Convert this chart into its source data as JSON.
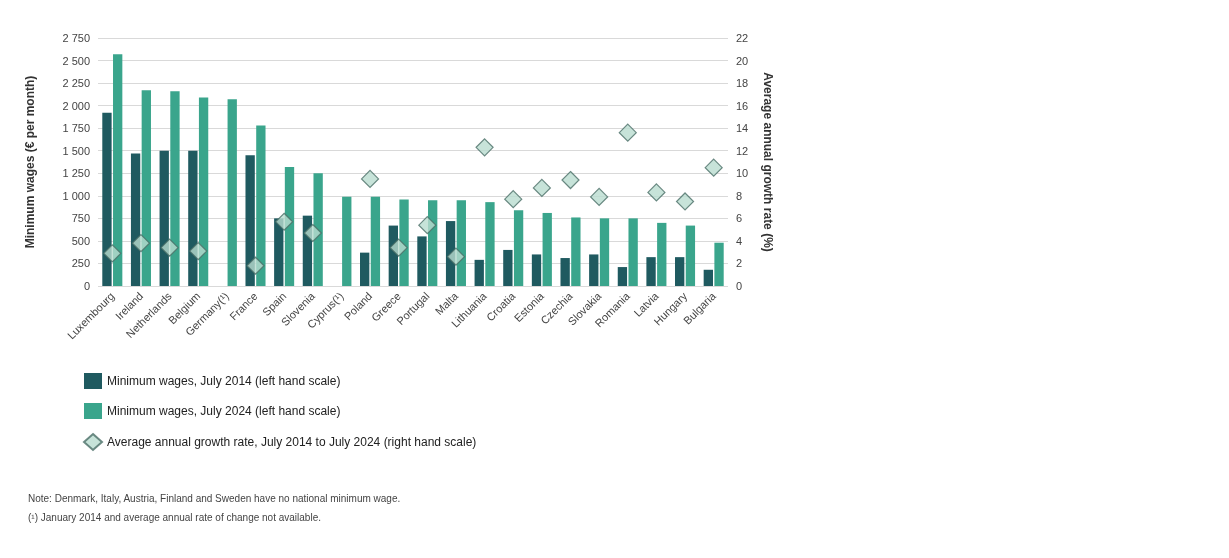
{
  "chart_data": {
    "type": "bar",
    "ylabel": "Minimum wages (€ per month)",
    "y2label": "Average annual growth rate (%)",
    "categories": [
      "Luxembourg",
      "Ireland",
      "Netherlands",
      "Belgium",
      "Germany(¹)",
      "France",
      "Spain",
      "Slovenia",
      "Cyprus(¹)",
      "Poland",
      "Greece",
      "Portugal",
      "Malta",
      "Lithuania",
      "Croatia",
      "Estonia",
      "Czechia",
      "Slovakia",
      "Romania",
      "Latvia",
      "Hungary",
      "Bulgaria"
    ],
    "series": [
      {
        "name": "Minimum wages, July 2014 (left hand scale)",
        "color": "#1f5a60",
        "values": [
          1920,
          1470,
          1500,
          1500,
          null,
          1450,
          750,
          780,
          null,
          370,
          670,
          550,
          720,
          290,
          400,
          350,
          310,
          350,
          210,
          320,
          320,
          180
        ]
      },
      {
        "name": "Minimum wages, July 2024 (left hand scale)",
        "color": "#3aa58c",
        "values": [
          2570,
          2170,
          2160,
          2090,
          2070,
          1780,
          1320,
          1250,
          990,
          990,
          960,
          950,
          950,
          930,
          840,
          810,
          760,
          750,
          750,
          700,
          670,
          480
        ]
      },
      {
        "name": "Average annual growth rate, July 2014 to July 2024 (right hand scale)",
        "type": "scatter",
        "axis": "y2",
        "marker": "diamond",
        "color": "#b9dccf",
        "values": [
          2.9,
          3.8,
          3.4,
          3.1,
          null,
          1.8,
          5.7,
          4.7,
          null,
          9.5,
          3.4,
          5.4,
          2.6,
          12.3,
          7.7,
          8.7,
          9.4,
          7.9,
          13.6,
          8.3,
          7.5,
          10.5
        ]
      }
    ],
    "ylim": [
      0,
      2750
    ],
    "yticks": [
      0,
      {
        "value": 250,
        "label": "250"
      },
      {
        "value": 500,
        "label": "500"
      },
      {
        "value": 750,
        "label": "750"
      },
      {
        "value": 1000,
        "label": "1 000"
      },
      {
        "value": 1250,
        "label": "1 250"
      },
      {
        "value": 1500,
        "label": "1 500"
      },
      {
        "value": 1750,
        "label": "1 750"
      },
      {
        "value": 2000,
        "label": "2 000"
      },
      {
        "value": 2250,
        "label": "2 250"
      },
      {
        "value": 2500,
        "label": "2 500"
      },
      {
        "value": 2750,
        "label": "2 750"
      }
    ],
    "y2lim": [
      0,
      22
    ],
    "y2ticks": [
      0,
      2,
      4,
      6,
      8,
      10,
      12,
      14,
      16,
      18,
      20,
      22
    ],
    "grid": "y",
    "legend": "bottom",
    "annotations": [
      "Note: Denmark, Italy, Austria, Finland and Sweden have no national minimum wage.",
      "(¹) January 2014 and average annual rate of change not available."
    ]
  }
}
